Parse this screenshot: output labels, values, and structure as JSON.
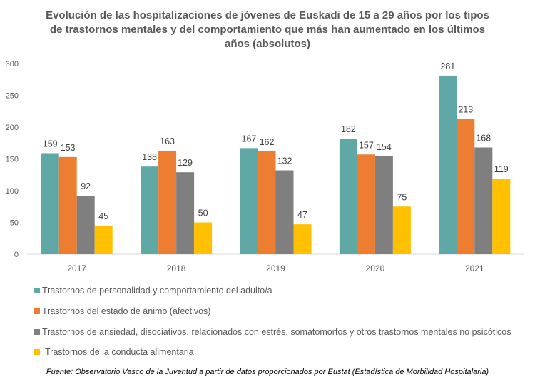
{
  "chart_data": {
    "type": "bar",
    "title": "Evolución de las hospitalizaciones de jóvenes de Euskadi de 15 a 29 años por los tipos de trastornos mentales y del comportamiento que más han aumentado en los últimos años (absolutos)",
    "categories": [
      "2017",
      "2018",
      "2019",
      "2020",
      "2021"
    ],
    "ylim": [
      0,
      300
    ],
    "yticks": [
      "0",
      "50",
      "100",
      "150",
      "200",
      "250",
      "300"
    ],
    "grid": false,
    "legend_position": "bottom",
    "series": [
      {
        "name": "Trastornos de personalidad y comportamiento del adulto/a",
        "color": "#5fa8a6",
        "values": [
          159,
          138,
          167,
          182,
          281
        ]
      },
      {
        "name": "Trastornos del estado de ánimo (afectivos)",
        "color": "#ed7d31",
        "values": [
          153,
          163,
          162,
          157,
          213
        ]
      },
      {
        "name": "Trastornos de ansiedad, disociativos, relacionados con estrés, somatomorfos y otros trastornos mentales no psicóticos",
        "color": "#7f7f7f",
        "values": [
          92,
          129,
          132,
          154,
          168
        ]
      },
      {
        "name": "Trastornos de la conducta alimentaria",
        "color": "#ffc000",
        "values": [
          45,
          50,
          47,
          75,
          119
        ]
      }
    ]
  },
  "source": "Fuente: Observatorio Vasco de la Juventud a partir de datos proporcionados por Eustat (Estadística de Morbilidad Hospitalaria)"
}
